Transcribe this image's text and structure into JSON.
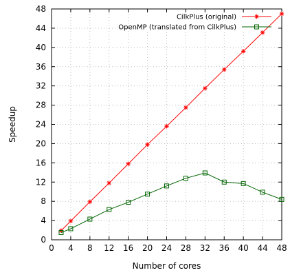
{
  "chart_data": {
    "type": "line",
    "title": "",
    "xlabel": "Number of cores",
    "ylabel": "Speedup",
    "xlim": [
      0,
      48
    ],
    "ylim": [
      0,
      48
    ],
    "x_ticks": [
      0,
      4,
      8,
      12,
      16,
      20,
      24,
      28,
      32,
      36,
      40,
      44,
      48
    ],
    "y_ticks": [
      0,
      4,
      8,
      12,
      16,
      20,
      24,
      28,
      32,
      36,
      40,
      44,
      48
    ],
    "grid": true,
    "legend_position": "top-right",
    "series": [
      {
        "name": "CilkPlus (original)",
        "color": "#ff0000",
        "marker": "star",
        "x": [
          2,
          4,
          8,
          12,
          16,
          20,
          24,
          28,
          32,
          36,
          40,
          44,
          48
        ],
        "y": [
          1.9,
          3.9,
          7.9,
          11.8,
          15.8,
          19.8,
          23.6,
          27.5,
          31.5,
          35.4,
          39.2,
          43.1,
          47.0
        ]
      },
      {
        "name": "OpenMP (translated from CilkPlus)",
        "color": "#006400",
        "marker": "square",
        "x": [
          2,
          4,
          8,
          12,
          16,
          20,
          24,
          28,
          32,
          36,
          40,
          44,
          48
        ],
        "y": [
          1.5,
          2.3,
          4.3,
          6.3,
          7.8,
          9.5,
          11.2,
          12.8,
          13.9,
          12.0,
          11.7,
          9.9,
          8.4
        ]
      }
    ]
  }
}
